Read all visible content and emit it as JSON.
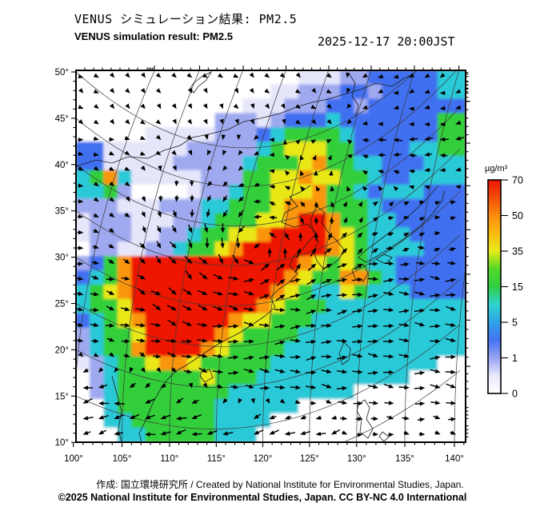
{
  "header": {
    "title_ja": "VENUS シミュレーション結果: PM2.5",
    "title_en": "VENUS simulation result: PM2.5",
    "datetime": "2025-12-17 20:00JST"
  },
  "footer": {
    "credit": "作成: 国立環境研究所 / Created by National Institute for Environmental Studies, Japan.",
    "license": "©2025 National Institute for Environmental Studies, Japan. CC BY-NC 4.0 International"
  },
  "colorbar": {
    "unit": "µg/m³",
    "tick_labels_top_to_bottom": [
      "70",
      "50",
      "35",
      "15",
      "5",
      "1",
      "0"
    ],
    "gradient_bottom_to_top": [
      "#ffffff",
      "#e8e8fc",
      "#99a4f2",
      "#4472f2",
      "#2fa4e8",
      "#2fd2cf",
      "#30cf45",
      "#52d926",
      "#e8ea1d",
      "#f9bb10",
      "#f98c0d",
      "#f54e08",
      "#ee1404"
    ]
  },
  "axes": {
    "lat_labels": [
      "50°",
      "45°",
      "40°",
      "35°",
      "30°",
      "25°",
      "20°",
      "15°",
      "10°"
    ],
    "lon_labels": [
      "100°",
      "105°",
      "110°",
      "115°",
      "120°",
      "125°",
      "130°",
      "135°",
      "140°"
    ]
  },
  "chart_data": {
    "type": "heatmap",
    "quantity": "PM2.5 surface concentration",
    "unit": "µg/m³",
    "time": "2025-12-17 20:00JST",
    "region": "East Asia",
    "lon_range": [
      100,
      140
    ],
    "lat_range": [
      10,
      50
    ],
    "levels": [
      0,
      1,
      5,
      15,
      35,
      50,
      70
    ],
    "palette": [
      "#ffffff",
      "#e6e6fa",
      "#9fa9f0",
      "#4070f0",
      "#2cc9d8",
      "#30cf3a",
      "#e9e818",
      "#f9960f",
      "#ee1504"
    ],
    "grid_cols": 28,
    "grid_rows": 26,
    "field_rows_top_to_bottom": [
      "0000000000000000111223333344",
      "0000000000000011222332333344",
      "0000000000001112223323333333",
      "0000000000222123334333333355",
      "0000011111222345555433333355",
      "3311111122222456665533334455",
      "3311111222224555675544333444",
      "4574111112225566766554334444",
      "4452000012245566675543444333",
      "2221112224455567775554333333",
      "1222111224555667887554433333",
      "1222112245566788887654443333",
      "0221122455678888887654444333",
      "2357888888888888765654433333",
      "3457888888888887655775433333",
      "4567888888888876544654443333",
      "4556888888888765554444444444",
      "3456788888876655544444444444",
      "2455688888765555444444444444",
      "2455788887655554444444444444",
      "1245567765555544444444444400",
      "0245555556555444444444440000",
      "0245555555544444444400000000",
      "0045555555444444000000000000",
      "0044555555444400000000000000",
      "0004455555444000000000000000"
    ],
    "overlay": "black wind vector arrows; eastward jet south of Japan, cyclonic circulation over high-PM2.5 region in eastern China, easterly flow in tropics and weak flow in the far north"
  }
}
